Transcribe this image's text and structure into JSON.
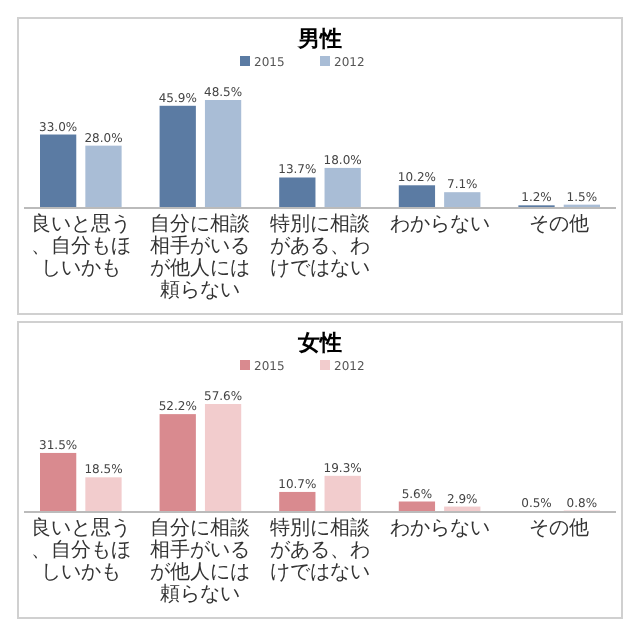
{
  "chart_data": [
    {
      "type": "bar",
      "title": "男性",
      "categories": [
        "良いと思う、自分もほしいかも",
        "自分に相談相手がいるが他人には頼らない",
        "特別に相談がある、わけではない",
        "わからない",
        "その他"
      ],
      "series": [
        {
          "name": "2015",
          "color": "#5b7ba3",
          "values": [
            33.0,
            45.9,
            13.7,
            10.2,
            1.2
          ],
          "value_labels": [
            "33.0%",
            "45.9%",
            "13.7%",
            "10.2%",
            "1.2%"
          ]
        },
        {
          "name": "2012",
          "color": "#a9bdd6",
          "values": [
            28.0,
            48.5,
            18.0,
            7.1,
            1.5
          ],
          "value_labels": [
            "28.0%",
            "48.5%",
            "18.0%",
            "7.1%",
            "1.5%"
          ]
        }
      ],
      "legend": "top"
    },
    {
      "type": "bar",
      "title": "女性",
      "categories": [
        "良いと思う、自分もほしいかも",
        "自分に相談相手がいるが他人には頼らない",
        "特別に相談がある、わけではない",
        "わからない",
        "その他"
      ],
      "series": [
        {
          "name": "2015",
          "color": "#d98a8f",
          "values": [
            31.5,
            52.2,
            10.7,
            5.6,
            0.5
          ],
          "value_labels": [
            "31.5%",
            "52.2%",
            "10.7%",
            "5.6%",
            "0.5%"
          ]
        },
        {
          "name": "2012",
          "color": "#f2cccd",
          "values": [
            18.5,
            57.6,
            19.3,
            2.9,
            0.8
          ],
          "value_labels": [
            "18.5%",
            "57.6%",
            "19.3%",
            "2.9%",
            "0.8%"
          ]
        }
      ],
      "legend": "top"
    }
  ]
}
